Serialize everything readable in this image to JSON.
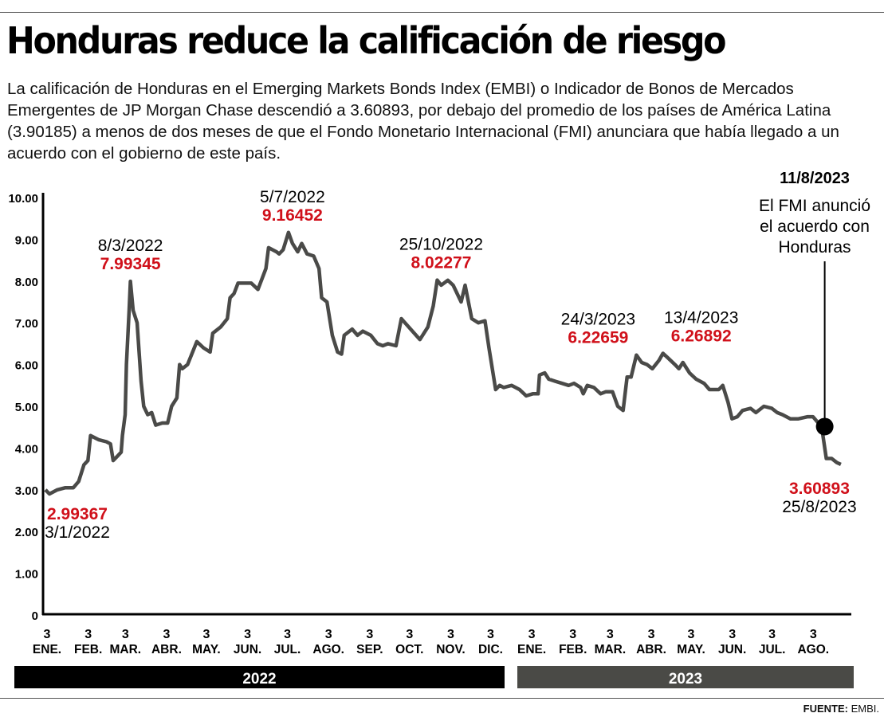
{
  "title": "Honduras reduce la calificación de riesgo",
  "lede": "La calificación de Honduras en el Emerging Markets Bonds Index (EMBI) o Indicador de Bonos de Mercados Emergentes de JP Morgan Chase descendió a 3.60893, por debajo del promedio de los países de América Latina (3.90185) a menos de dos meses de que el Fondo Monetario Internacional (FMI) anunciara que había llegado a un acuerdo con el gobierno de este país.",
  "source_label": "FUENTE:",
  "source_value": "EMBI.",
  "colors": {
    "line": "#4a4a48",
    "highlight": "#d0101a",
    "year_2022": "#000000",
    "year_2023": "#4a4a46"
  },
  "chart_data": {
    "type": "line",
    "ylim": [
      0,
      10
    ],
    "y_ticks": [
      "0",
      "1.00",
      "2.00",
      "3.00",
      "4.00",
      "5.00",
      "6.00",
      "7.00",
      "8.00",
      "9.00",
      "10.00"
    ],
    "x_ticks": [
      {
        "day": "3",
        "month": "ENE.",
        "date": "2022-01-03"
      },
      {
        "day": "3",
        "month": "FEB.",
        "date": "2022-02-03"
      },
      {
        "day": "3",
        "month": "MAR.",
        "date": "2022-03-03"
      },
      {
        "day": "3",
        "month": "ABR.",
        "date": "2022-04-03"
      },
      {
        "day": "3",
        "month": "MAY.",
        "date": "2022-05-03"
      },
      {
        "day": "3",
        "month": "JUN.",
        "date": "2022-06-03"
      },
      {
        "day": "3",
        "month": "JUL.",
        "date": "2022-07-03"
      },
      {
        "day": "3",
        "month": "AGO.",
        "date": "2022-08-03"
      },
      {
        "day": "3",
        "month": "SEP.",
        "date": "2022-09-03"
      },
      {
        "day": "3",
        "month": "OCT.",
        "date": "2022-10-03"
      },
      {
        "day": "3",
        "month": "NOV.",
        "date": "2022-11-03"
      },
      {
        "day": "3",
        "month": "DIC.",
        "date": "2022-12-03"
      },
      {
        "day": "3",
        "month": "ENE.",
        "date": "2023-01-03"
      },
      {
        "day": "3",
        "month": "FEB.",
        "date": "2023-02-03"
      },
      {
        "day": "3",
        "month": "MAR.",
        "date": "2023-03-03"
      },
      {
        "day": "3",
        "month": "ABR.",
        "date": "2023-04-03"
      },
      {
        "day": "3",
        "month": "MAY.",
        "date": "2023-05-03"
      },
      {
        "day": "3",
        "month": "JUN.",
        "date": "2023-06-03"
      },
      {
        "day": "3",
        "month": "JUL.",
        "date": "2023-07-03"
      },
      {
        "day": "3",
        "month": "AGO.",
        "date": "2023-08-03"
      }
    ],
    "years": [
      {
        "label": "2022",
        "from": "2022-01-01",
        "to": "2022-12-31"
      },
      {
        "label": "2023",
        "from": "2023-01-01",
        "to": "2023-08-31"
      }
    ],
    "series": [
      {
        "points": [
          [
            "2022-01-03",
            3.0
          ],
          [
            "2022-01-06",
            2.9
          ],
          [
            "2022-01-12",
            3.0
          ],
          [
            "2022-01-18",
            3.05
          ],
          [
            "2022-01-24",
            3.05
          ],
          [
            "2022-01-28",
            3.2
          ],
          [
            "2022-02-01",
            3.6
          ],
          [
            "2022-02-04",
            3.7
          ],
          [
            "2022-02-06",
            4.3
          ],
          [
            "2022-02-12",
            4.2
          ],
          [
            "2022-02-18",
            4.15
          ],
          [
            "2022-02-21",
            4.1
          ],
          [
            "2022-02-23",
            3.7
          ],
          [
            "2022-02-26",
            3.8
          ],
          [
            "2022-03-01",
            3.9
          ],
          [
            "2022-03-02",
            4.3
          ],
          [
            "2022-03-04",
            4.8
          ],
          [
            "2022-03-05",
            6.0
          ],
          [
            "2022-03-07",
            7.3
          ],
          [
            "2022-03-08",
            7.99345
          ],
          [
            "2022-03-10",
            7.3
          ],
          [
            "2022-03-13",
            7.0
          ],
          [
            "2022-03-16",
            5.6
          ],
          [
            "2022-03-18",
            5.0
          ],
          [
            "2022-03-21",
            4.8
          ],
          [
            "2022-03-24",
            4.85
          ],
          [
            "2022-03-27",
            4.55
          ],
          [
            "2022-04-01",
            4.6
          ],
          [
            "2022-04-05",
            4.6
          ],
          [
            "2022-04-08",
            5.0
          ],
          [
            "2022-04-12",
            5.2
          ],
          [
            "2022-04-14",
            6.0
          ],
          [
            "2022-04-16",
            5.9
          ],
          [
            "2022-04-20",
            6.0
          ],
          [
            "2022-04-27",
            6.55
          ],
          [
            "2022-05-02",
            6.4
          ],
          [
            "2022-05-07",
            6.3
          ],
          [
            "2022-05-09",
            6.75
          ],
          [
            "2022-05-15",
            6.9
          ],
          [
            "2022-05-20",
            7.1
          ],
          [
            "2022-05-22",
            7.6
          ],
          [
            "2022-05-25",
            7.7
          ],
          [
            "2022-05-28",
            7.95
          ],
          [
            "2022-06-07",
            7.95
          ],
          [
            "2022-06-12",
            7.8
          ],
          [
            "2022-06-18",
            8.3
          ],
          [
            "2022-06-20",
            8.8
          ],
          [
            "2022-06-26",
            8.7
          ],
          [
            "2022-06-28",
            8.65
          ],
          [
            "2022-07-01",
            8.75
          ],
          [
            "2022-07-05",
            9.16452
          ],
          [
            "2022-07-08",
            8.9
          ],
          [
            "2022-07-12",
            8.7
          ],
          [
            "2022-07-15",
            8.9
          ],
          [
            "2022-07-19",
            8.65
          ],
          [
            "2022-07-24",
            8.6
          ],
          [
            "2022-07-28",
            8.3
          ],
          [
            "2022-07-30",
            7.6
          ],
          [
            "2022-08-03",
            7.5
          ],
          [
            "2022-08-07",
            6.7
          ],
          [
            "2022-08-11",
            6.3
          ],
          [
            "2022-08-14",
            6.25
          ],
          [
            "2022-08-16",
            6.7
          ],
          [
            "2022-08-22",
            6.85
          ],
          [
            "2022-08-26",
            6.7
          ],
          [
            "2022-08-30",
            6.8
          ],
          [
            "2022-09-05",
            6.7
          ],
          [
            "2022-09-10",
            6.5
          ],
          [
            "2022-09-14",
            6.45
          ],
          [
            "2022-09-18",
            6.5
          ],
          [
            "2022-09-24",
            6.45
          ],
          [
            "2022-09-28",
            7.1
          ],
          [
            "2022-10-05",
            6.85
          ],
          [
            "2022-10-12",
            6.6
          ],
          [
            "2022-10-18",
            6.9
          ],
          [
            "2022-10-22",
            7.4
          ],
          [
            "2022-10-25",
            8.02277
          ],
          [
            "2022-10-28",
            7.9
          ],
          [
            "2022-11-02",
            8.02
          ],
          [
            "2022-11-06",
            7.9
          ],
          [
            "2022-11-12",
            7.5
          ],
          [
            "2022-11-15",
            7.9
          ],
          [
            "2022-11-20",
            7.1
          ],
          [
            "2022-11-25",
            7.0
          ],
          [
            "2022-11-30",
            7.05
          ],
          [
            "2022-12-03",
            6.4
          ],
          [
            "2022-12-08",
            5.4
          ],
          [
            "2022-12-11",
            5.5
          ],
          [
            "2022-12-14",
            5.45
          ],
          [
            "2022-12-20",
            5.5
          ],
          [
            "2022-12-26",
            5.4
          ],
          [
            "2022-12-31",
            5.25
          ],
          [
            "2023-01-05",
            5.3
          ],
          [
            "2023-01-09",
            5.3
          ],
          [
            "2023-01-10",
            5.75
          ],
          [
            "2023-01-14",
            5.8
          ],
          [
            "2023-01-17",
            5.65
          ],
          [
            "2023-01-22",
            5.6
          ],
          [
            "2023-01-27",
            5.55
          ],
          [
            "2023-02-01",
            5.5
          ],
          [
            "2023-02-05",
            5.55
          ],
          [
            "2023-02-10",
            5.45
          ],
          [
            "2023-02-12",
            5.3
          ],
          [
            "2023-02-15",
            5.5
          ],
          [
            "2023-02-20",
            5.45
          ],
          [
            "2023-02-25",
            5.3
          ],
          [
            "2023-03-01",
            5.35
          ],
          [
            "2023-03-06",
            5.35
          ],
          [
            "2023-03-10",
            5.0
          ],
          [
            "2023-03-14",
            4.9
          ],
          [
            "2023-03-17",
            5.7
          ],
          [
            "2023-03-20",
            5.7
          ],
          [
            "2023-03-24",
            6.22659
          ],
          [
            "2023-03-28",
            6.05
          ],
          [
            "2023-04-01",
            6.0
          ],
          [
            "2023-04-05",
            5.9
          ],
          [
            "2023-04-10",
            6.1
          ],
          [
            "2023-04-13",
            6.26892
          ],
          [
            "2023-04-17",
            6.15
          ],
          [
            "2023-04-22",
            6.0
          ],
          [
            "2023-04-25",
            5.9
          ],
          [
            "2023-04-28",
            6.05
          ],
          [
            "2023-05-03",
            5.8
          ],
          [
            "2023-05-08",
            5.65
          ],
          [
            "2023-05-14",
            5.55
          ],
          [
            "2023-05-18",
            5.4
          ],
          [
            "2023-05-25",
            5.4
          ],
          [
            "2023-05-28",
            5.5
          ],
          [
            "2023-06-01",
            5.1
          ],
          [
            "2023-06-04",
            4.7
          ],
          [
            "2023-06-08",
            4.75
          ],
          [
            "2023-06-12",
            4.9
          ],
          [
            "2023-06-18",
            4.95
          ],
          [
            "2023-06-22",
            4.85
          ],
          [
            "2023-06-28",
            5.0
          ],
          [
            "2023-07-04",
            4.95
          ],
          [
            "2023-07-08",
            4.85
          ],
          [
            "2023-07-12",
            4.8
          ],
          [
            "2023-07-18",
            4.7
          ],
          [
            "2023-07-24",
            4.7
          ],
          [
            "2023-07-31",
            4.75
          ],
          [
            "2023-08-04",
            4.75
          ],
          [
            "2023-08-08",
            4.6
          ],
          [
            "2023-08-11",
            4.4
          ],
          [
            "2023-08-14",
            3.75
          ],
          [
            "2023-08-18",
            3.75
          ],
          [
            "2023-08-22",
            3.65
          ],
          [
            "2023-08-25",
            3.60893
          ]
        ]
      }
    ],
    "annotations": [
      {
        "date_label": "3/1/2022",
        "value_label": "2.99367",
        "date": "2022-01-03",
        "value": 2.99367,
        "position": "below"
      },
      {
        "date_label": "8/3/2022",
        "value_label": "7.99345",
        "date": "2022-03-08",
        "value": 7.99345,
        "position": "above"
      },
      {
        "date_label": "5/7/2022",
        "value_label": "9.16452",
        "date": "2022-07-05",
        "value": 9.16452,
        "position": "above"
      },
      {
        "date_label": "25/10/2022",
        "value_label": "8.02277",
        "date": "2022-10-25",
        "value": 8.02277,
        "position": "above"
      },
      {
        "date_label": "24/3/2023",
        "value_label": "6.22659",
        "date": "2023-03-24",
        "value": 6.22659,
        "position": "above"
      },
      {
        "date_label": "13/4/2023",
        "value_label": "6.26892",
        "date": "2023-04-13",
        "value": 6.26892,
        "position": "above"
      },
      {
        "date_label": "25/8/2023",
        "value_label": "3.60893",
        "date": "2023-08-25",
        "value": 3.60893,
        "position": "below"
      }
    ],
    "event": {
      "date_label": "11/8/2023",
      "date": "2023-08-11",
      "value": 4.4,
      "text": [
        "El FMI anunció",
        "el acuerdo con",
        "Honduras"
      ]
    }
  }
}
